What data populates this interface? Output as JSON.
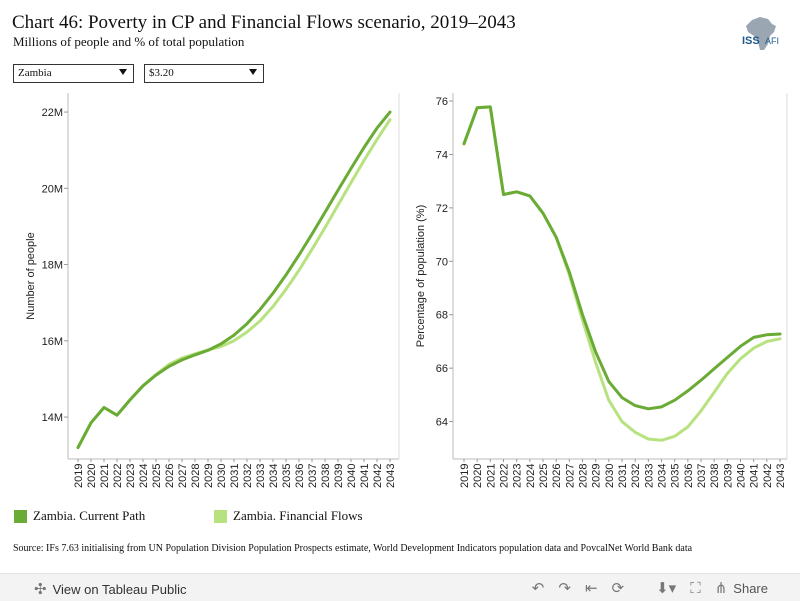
{
  "header": {
    "title": "Chart 46: Poverty in CP and Financial Flows scenario, 2019–2043",
    "subtitle": "Millions of people and % of total population",
    "logo_text": "ISS",
    "logo_text2": "AFI"
  },
  "filters": {
    "country": "Zambia",
    "threshold": "$3.20"
  },
  "colors": {
    "current_path": "#6aab35",
    "financial_flows": "#b7e27f"
  },
  "chart_data": [
    {
      "type": "line",
      "ylabel": "Number of people",
      "x": [
        2019,
        2020,
        2021,
        2022,
        2023,
        2024,
        2025,
        2026,
        2027,
        2028,
        2029,
        2030,
        2031,
        2032,
        2033,
        2034,
        2035,
        2036,
        2037,
        2038,
        2039,
        2040,
        2041,
        2042,
        2043
      ],
      "ylim": [
        12.9,
        22.5
      ],
      "yticks": [
        14,
        16,
        18,
        20,
        22
      ],
      "ytick_labels": [
        "14M",
        "16M",
        "18M",
        "20M",
        "22M"
      ],
      "grid": false,
      "series": [
        {
          "name": "Zambia. Current Path",
          "values": [
            13.2,
            13.85,
            14.25,
            14.05,
            14.45,
            14.82,
            15.1,
            15.33,
            15.5,
            15.63,
            15.75,
            15.92,
            16.15,
            16.45,
            16.82,
            17.25,
            17.73,
            18.25,
            18.8,
            19.37,
            19.95,
            20.52,
            21.07,
            21.58,
            22.0
          ]
        },
        {
          "name": "Zambia. Financial Flows",
          "values": [
            13.2,
            13.85,
            14.25,
            14.05,
            14.45,
            14.82,
            15.12,
            15.38,
            15.55,
            15.66,
            15.76,
            15.85,
            16.0,
            16.23,
            16.52,
            16.9,
            17.35,
            17.85,
            18.4,
            18.97,
            19.56,
            20.15,
            20.73,
            21.28,
            21.8
          ]
        }
      ]
    },
    {
      "type": "line",
      "ylabel": "Percentage of population (%)",
      "x": [
        2019,
        2020,
        2021,
        2022,
        2023,
        2024,
        2025,
        2026,
        2027,
        2028,
        2029,
        2030,
        2031,
        2032,
        2033,
        2034,
        2035,
        2036,
        2037,
        2038,
        2039,
        2040,
        2041,
        2042,
        2043
      ],
      "ylim": [
        62.6,
        76.3
      ],
      "yticks": [
        64,
        66,
        68,
        70,
        72,
        74,
        76
      ],
      "ytick_labels": [
        "64",
        "66",
        "68",
        "70",
        "72",
        "74",
        "76"
      ],
      "grid": false,
      "series": [
        {
          "name": "Zambia. Current Path",
          "values": [
            74.4,
            75.75,
            75.78,
            72.5,
            72.6,
            72.45,
            71.8,
            70.9,
            69.6,
            68.0,
            66.6,
            65.5,
            64.9,
            64.6,
            64.48,
            64.55,
            64.8,
            65.15,
            65.55,
            65.98,
            66.4,
            66.82,
            67.15,
            67.25,
            67.28
          ]
        },
        {
          "name": "Zambia. Financial Flows",
          "values": [
            74.4,
            75.75,
            75.78,
            72.5,
            72.6,
            72.45,
            71.8,
            70.9,
            69.5,
            67.8,
            66.2,
            64.8,
            64.0,
            63.6,
            63.35,
            63.3,
            63.45,
            63.8,
            64.4,
            65.1,
            65.8,
            66.35,
            66.75,
            67.0,
            67.1
          ]
        }
      ]
    }
  ],
  "legend": {
    "current_path_label": "Zambia. Current Path",
    "financial_flows_label": "Zambia. Financial Flows"
  },
  "source": "Source: IFs 7.63 initialising from UN Population Division Population Prospects estimate, World Development Indicators population data and PovcalNet World Bank data",
  "footer": {
    "view_label": "View on Tableau Public",
    "share_label": "Share"
  }
}
